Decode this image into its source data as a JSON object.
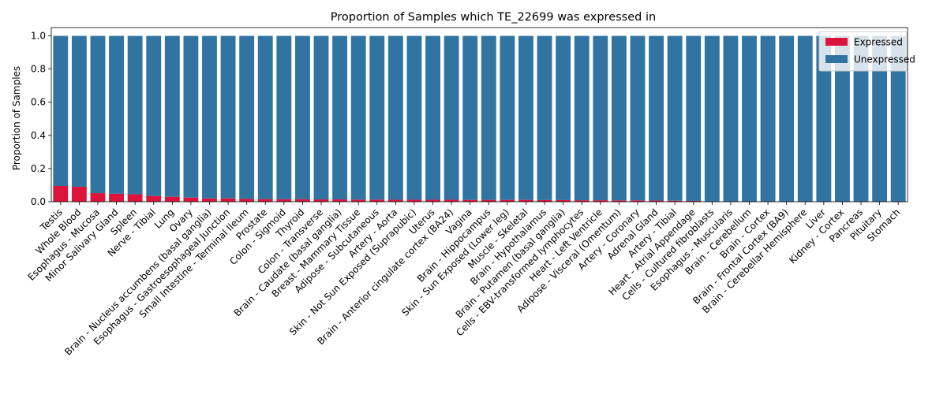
{
  "chart_data": {
    "type": "bar",
    "stacked": true,
    "title": "Proportion of Samples which TE_22699 was expressed in",
    "xlabel": "",
    "ylabel": "Proportion of Samples",
    "ylim": [
      0,
      1.05
    ],
    "yticks": [
      0.0,
      0.2,
      0.4,
      0.6,
      0.8,
      1.0
    ],
    "ytick_labels": [
      "0.0",
      "0.2",
      "0.4",
      "0.6",
      "0.8",
      "1.0"
    ],
    "grid": false,
    "legend_position": "top-right",
    "categories": [
      "Testis",
      "Whole Blood",
      "Esophagus - Mucosa",
      "Minor Salivary Gland",
      "Spleen",
      "Nerve - Tibial",
      "Lung",
      "Ovary",
      "Brain - Nucleus accumbens (basal ganglia)",
      "Esophagus - Gastroesophageal Junction",
      "Small Intestine - Terminal Ileum",
      "Prostate",
      "Colon - Sigmoid",
      "Thyroid",
      "Colon - Transverse",
      "Brain - Caudate (basal ganglia)",
      "Breast - Mammary Tissue",
      "Adipose - Subcutaneous",
      "Artery - Aorta",
      "Skin - Not Sun Exposed (Suprapubic)",
      "Uterus",
      "Brain - Anterior cingulate cortex (BA24)",
      "Vagina",
      "Brain - Hippocampus",
      "Skin - Sun Exposed (Lower leg)",
      "Muscle - Skeletal",
      "Brain - Hypothalamus",
      "Brain - Putamen (basal ganglia)",
      "Cells - EBV-transformed lymphocytes",
      "Heart - Left Ventricle",
      "Adipose - Visceral (Omentum)",
      "Artery - Coronary",
      "Adrenal Gland",
      "Artery - Tibial",
      "Heart - Atrial Appendage",
      "Cells - Cultured fibroblasts",
      "Esophagus - Muscularis",
      "Brain - Cerebellum",
      "Brain - Cortex",
      "Brain - Frontal Cortex (BA9)",
      "Brain - Cerebellar Hemisphere",
      "Liver",
      "Kidney - Cortex",
      "Pancreas",
      "Pituitary",
      "Stomach"
    ],
    "series": [
      {
        "name": "Expressed",
        "color": "#dc143c",
        "values": [
          0.095,
          0.09,
          0.052,
          0.048,
          0.045,
          0.035,
          0.03,
          0.025,
          0.02,
          0.02,
          0.017,
          0.016,
          0.015,
          0.015,
          0.014,
          0.014,
          0.013,
          0.013,
          0.012,
          0.012,
          0.012,
          0.012,
          0.011,
          0.011,
          0.011,
          0.011,
          0.01,
          0.01,
          0.009,
          0.009,
          0.008,
          0.008,
          0.007,
          0.006,
          0.005,
          0,
          0,
          0,
          0,
          0,
          0,
          0,
          0,
          0,
          0,
          0
        ]
      },
      {
        "name": "Unexpressed",
        "color": "#3274a1",
        "values": [
          0.905,
          0.91,
          0.948,
          0.952,
          0.955,
          0.965,
          0.97,
          0.975,
          0.98,
          0.98,
          0.983,
          0.984,
          0.985,
          0.985,
          0.986,
          0.986,
          0.987,
          0.987,
          0.988,
          0.988,
          0.988,
          0.988,
          0.989,
          0.989,
          0.989,
          0.989,
          0.99,
          0.99,
          0.991,
          0.991,
          0.992,
          0.992,
          0.993,
          0.994,
          0.995,
          1,
          1,
          1,
          1,
          1,
          1,
          1,
          1,
          1,
          1,
          1
        ]
      }
    ]
  }
}
